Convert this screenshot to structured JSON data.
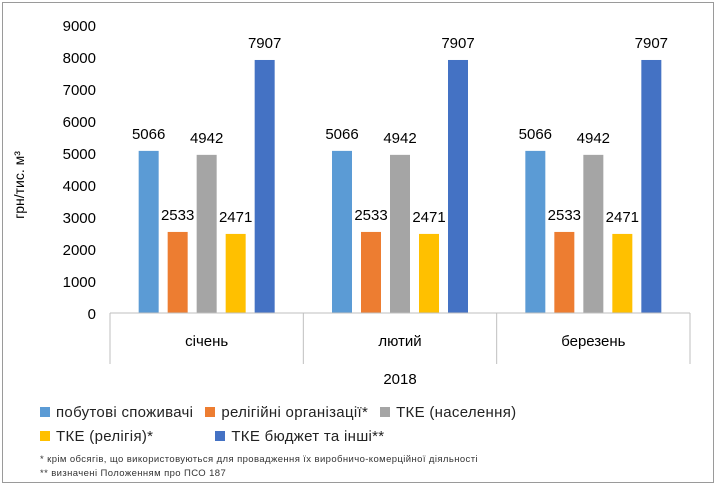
{
  "chart_data": {
    "type": "bar",
    "ylabel": "грн/тис. м³",
    "xlabel": "2018",
    "ylim": [
      0,
      9000
    ],
    "yticks": [
      0,
      1000,
      2000,
      3000,
      4000,
      5000,
      6000,
      7000,
      8000,
      9000
    ],
    "categories": [
      "січень",
      "лютий",
      "березень"
    ],
    "series": [
      {
        "name": "побутові споживачі",
        "color": "#5b9bd5",
        "values": [
          5066,
          5066,
          5066
        ]
      },
      {
        "name": "релігійні організації*",
        "color": "#ed7d31",
        "values": [
          2533,
          2533,
          2533
        ]
      },
      {
        "name": "ТКЕ (населення)",
        "color": "#a5a5a5",
        "values": [
          4942,
          4942,
          4942
        ]
      },
      {
        "name": "ТКЕ (релігія)*",
        "color": "#ffc000",
        "values": [
          2471,
          2471,
          2471
        ]
      },
      {
        "name": "ТКЕ бюджет та інші**",
        "color": "#4472c4",
        "values": [
          7907,
          7907,
          7907
        ]
      }
    ],
    "grid": false,
    "legend_position": "bottom"
  },
  "notes": [
    "* крім обсягів, що використовуються для провадження їх виробничо-комерційної діяльності",
    "** визначені Положенням про ПСО 187"
  ]
}
